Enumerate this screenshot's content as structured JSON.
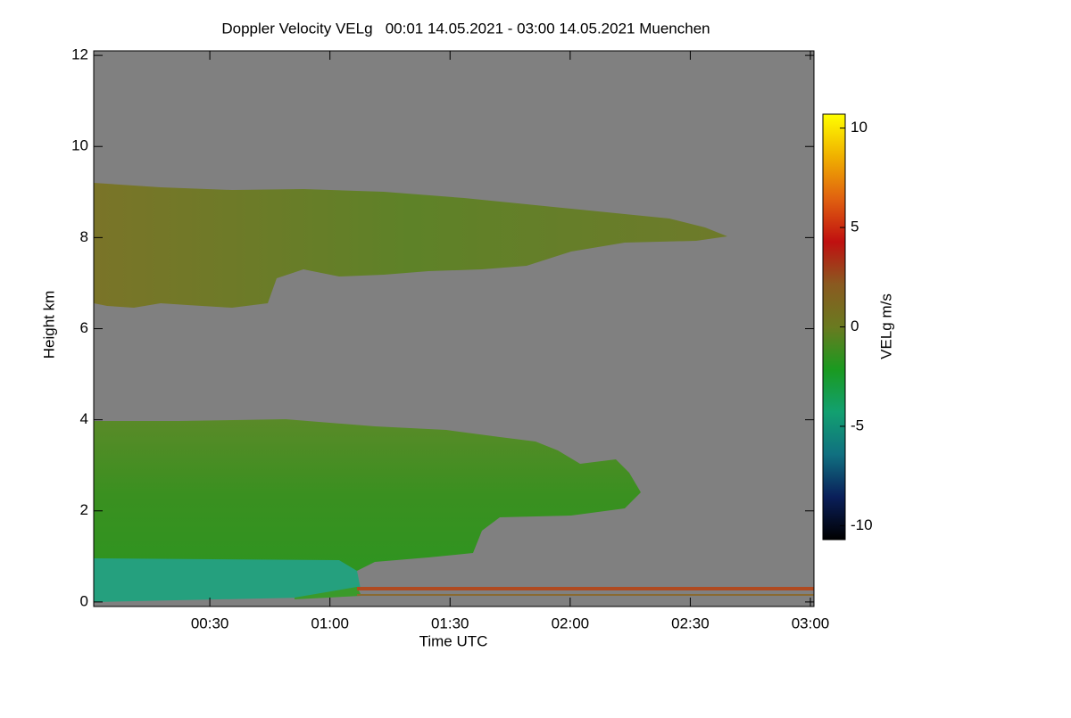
{
  "chart_data": {
    "type": "heatmap",
    "title": "Doppler Velocity VELg   00:01 14.05.2021 - 03:00 14.05.2021 Muenchen",
    "x_label": "Time UTC",
    "y_label": "Height km",
    "colorbar_label": "VELg m/s",
    "xlim": [
      1,
      180
    ],
    "xticks": [
      {
        "value": 30,
        "label": "00:30"
      },
      {
        "value": 60,
        "label": "01:00"
      },
      {
        "value": 90,
        "label": "01:30"
      },
      {
        "value": 120,
        "label": "02:00"
      },
      {
        "value": 150,
        "label": "02:30"
      },
      {
        "value": 180,
        "label": "03:00"
      }
    ],
    "ylim": [
      -0.1,
      12.1
    ],
    "yticks": [
      0,
      2,
      4,
      6,
      8,
      10,
      12
    ],
    "zlim": [
      -10.7,
      10.7
    ],
    "zticks": [
      -10,
      -5,
      0,
      5,
      10
    ],
    "colormap": [
      "#000000",
      "#0a1f5a",
      "#107080",
      "#12a070",
      "#1a9a20",
      "#6a7a20",
      "#8a5a20",
      "#c01010",
      "#e06010",
      "#f0b000",
      "#ffff00"
    ],
    "background": "#808080"
  }
}
